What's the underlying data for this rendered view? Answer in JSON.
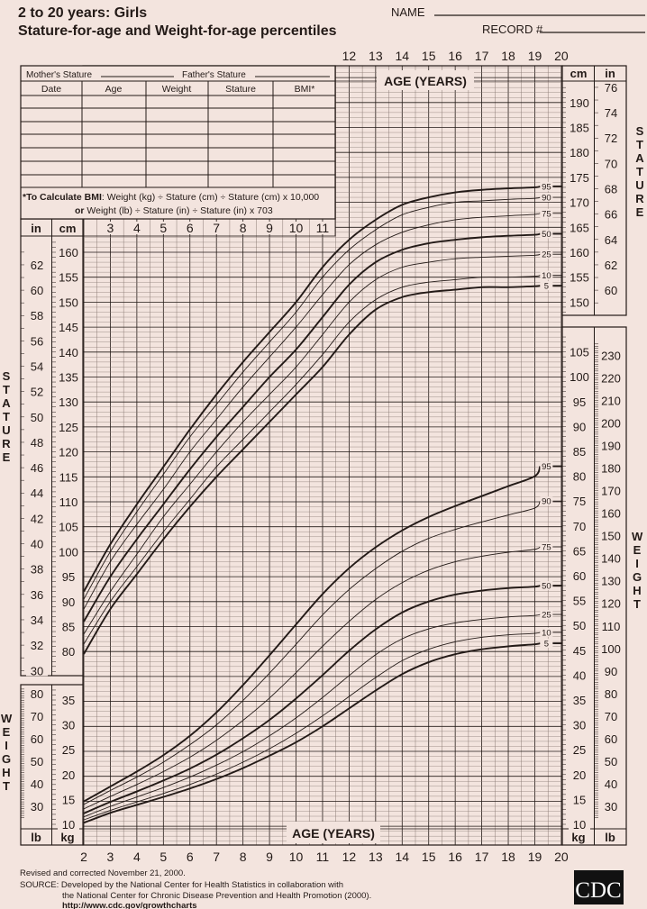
{
  "header": {
    "title": "2 to 20 years: Girls",
    "subtitle": "Stature-for-age and Weight-for-age percentiles",
    "name_label": "NAME",
    "record_label": "RECORD #"
  },
  "table": {
    "mother_label": "Mother's Stature",
    "father_label": "Father's Stature",
    "columns": [
      "Date",
      "Age",
      "Weight",
      "Stature",
      "BMI*"
    ],
    "bmi_note_bold": "*To Calculate BMI",
    "bmi_note_1": ": Weight (kg) ÷ Stature (cm) ÷ Stature (cm) x 10,000",
    "bmi_note_or": "or",
    "bmi_note_2": " Weight (lb) ÷ Stature (in) ÷ Stature (in) x 703"
  },
  "axes": {
    "age_title": "AGE (YEARS)",
    "in": "in",
    "cm": "cm",
    "kg": "kg",
    "lb": "lb",
    "stature_side": "STATURE",
    "weight_side": "WEIGHT",
    "top_ages": [
      12,
      13,
      14,
      15,
      16,
      17,
      18,
      19,
      20
    ],
    "inner_ages": [
      3,
      4,
      5,
      6,
      7,
      8,
      9,
      10,
      11
    ],
    "bottom_ages": [
      2,
      3,
      4,
      5,
      6,
      7,
      8,
      9,
      10,
      11,
      12,
      13,
      14,
      15,
      16,
      17,
      18,
      19,
      20
    ],
    "left_stature_in": [
      30,
      32,
      34,
      36,
      38,
      40,
      42,
      44,
      46,
      48,
      50,
      52,
      54,
      56,
      58,
      60,
      62
    ],
    "left_stature_cm": [
      80,
      85,
      90,
      95,
      100,
      105,
      110,
      115,
      120,
      125,
      130,
      135,
      140,
      145,
      150,
      155,
      160
    ],
    "right_stature_cm": [
      150,
      155,
      160,
      165,
      170,
      175,
      180,
      185,
      190
    ],
    "right_stature_in": [
      60,
      62,
      64,
      66,
      68,
      70,
      72,
      74,
      76
    ],
    "left_weight_lb": [
      30,
      40,
      50,
      60,
      70,
      80
    ],
    "left_weight_kg": [
      10,
      15,
      20,
      25,
      30,
      35
    ],
    "right_weight_kg": [
      10,
      15,
      20,
      25,
      30,
      35,
      40,
      45,
      50,
      55,
      60,
      65,
      70,
      75,
      80,
      85,
      90,
      95,
      100,
      105
    ],
    "right_weight_lb": [
      30,
      40,
      50,
      60,
      70,
      80,
      90,
      100,
      110,
      120,
      130,
      140,
      150,
      160,
      170,
      180,
      190,
      200,
      210,
      220,
      230
    ]
  },
  "footer": {
    "revised": "Revised and corrected November 21, 2000.",
    "source_1": "SOURCE: Developed by the National Center for Health Statistics in collaboration with",
    "source_2": "the National Center for Chronic Disease Prevention and Health Promotion (2000).",
    "url": "http://www.cdc.gov/growthcharts",
    "logo": "CDC"
  },
  "colors": {
    "background": "#f3e4de",
    "ink": "#231a17",
    "grid": "#8a7a74"
  },
  "chart_data": [
    {
      "type": "line",
      "title": "Stature-for-age percentiles",
      "xlabel": "AGE (YEARS)",
      "ylabel": "STATURE (cm)",
      "xlim": [
        2,
        20
      ],
      "ylim": [
        75,
        192
      ],
      "x": [
        2,
        3,
        4,
        5,
        6,
        7,
        8,
        9,
        10,
        11,
        12,
        13,
        14,
        15,
        16,
        17,
        18,
        19,
        20
      ],
      "series": [
        {
          "name": "95",
          "values": [
            92,
            101.5,
            109.5,
            117,
            124.5,
            131.5,
            138,
            144,
            150,
            157,
            162.5,
            166.5,
            169.5,
            171,
            172,
            172.5,
            172.8,
            173,
            173.2
          ]
        },
        {
          "name": "90",
          "values": [
            90.5,
            100,
            108,
            115.5,
            123,
            129.5,
            136,
            142,
            148,
            155,
            160.5,
            164.5,
            167.5,
            169,
            170,
            170.3,
            170.6,
            170.8,
            171
          ]
        },
        {
          "name": "75",
          "values": [
            88.5,
            98,
            105.5,
            112.5,
            120,
            126.5,
            133,
            139,
            145,
            151.5,
            157.5,
            161.5,
            164,
            165.5,
            166.5,
            167,
            167.3,
            167.6,
            167.8
          ]
        },
        {
          "name": "50",
          "values": [
            86,
            95,
            102.5,
            109.5,
            116.5,
            123,
            129,
            135,
            140.5,
            147,
            153.5,
            158,
            160.5,
            161.8,
            162.5,
            163,
            163.3,
            163.5,
            163.7
          ]
        },
        {
          "name": "25",
          "values": [
            83.5,
            92,
            99.5,
            107,
            113.5,
            120,
            126,
            131.5,
            137,
            143.5,
            150,
            154.5,
            157,
            158,
            158.7,
            159,
            159.2,
            159.4,
            159.6
          ]
        },
        {
          "name": "10",
          "values": [
            81.5,
            90,
            97,
            104,
            110.5,
            117,
            122.5,
            128,
            133.5,
            139.5,
            146,
            150.5,
            153,
            154,
            154.5,
            155,
            155,
            155.2,
            155.4
          ]
        },
        {
          "name": "5",
          "values": [
            79.5,
            88.5,
            95.5,
            102.5,
            109,
            115,
            120.5,
            126,
            131.5,
            137,
            143.5,
            148.5,
            151,
            152,
            152.5,
            153,
            153,
            153.2,
            153.3
          ]
        }
      ]
    },
    {
      "type": "line",
      "title": "Weight-for-age percentiles",
      "xlabel": "AGE (YEARS)",
      "ylabel": "WEIGHT (kg)",
      "xlim": [
        2,
        20
      ],
      "ylim": [
        6,
        108
      ],
      "x": [
        2,
        3,
        4,
        5,
        6,
        7,
        8,
        9,
        10,
        11,
        12,
        13,
        14,
        15,
        16,
        17,
        18,
        19,
        20
      ],
      "series": [
        {
          "name": "95",
          "values": [
            14.6,
            17.6,
            20.6,
            23.9,
            27.8,
            32.5,
            38,
            44,
            50.2,
            56.3,
            61.5,
            65.7,
            69.1,
            71.8,
            74,
            76,
            78,
            80,
            82
          ]
        },
        {
          "name": "90",
          "values": [
            14,
            16.8,
            19.5,
            22.5,
            26,
            30,
            34.9,
            40.4,
            46.2,
            52.1,
            57.2,
            61.4,
            64.9,
            67.5,
            69.3,
            70.8,
            72.2,
            73.6,
            75
          ]
        },
        {
          "name": "75",
          "values": [
            13.1,
            15.6,
            18,
            20.6,
            23.5,
            26.9,
            30.9,
            35.4,
            40.5,
            45.8,
            50.8,
            55.2,
            58.6,
            61.1,
            62.8,
            63.9,
            64.7,
            65.3,
            65.8
          ]
        },
        {
          "name": "50",
          "values": [
            12.2,
            14.5,
            16.6,
            18.8,
            21.2,
            24,
            27.3,
            31,
            35.3,
            40,
            44.9,
            49.2,
            52.6,
            54.8,
            56.2,
            57,
            57.5,
            57.8,
            58
          ]
        },
        {
          "name": "25",
          "values": [
            11.5,
            13.6,
            15.5,
            17.4,
            19.5,
            21.9,
            24.6,
            27.8,
            31.4,
            35.5,
            39.9,
            44.1,
            47.3,
            49.3,
            50.5,
            51.2,
            51.7,
            52,
            52.2
          ]
        },
        {
          "name": "10",
          "values": [
            10.9,
            12.8,
            14.5,
            16.2,
            18,
            20.1,
            22.5,
            25.2,
            28.3,
            31.8,
            35.7,
            39.5,
            42.9,
            45.2,
            46.7,
            47.6,
            48.1,
            48.4,
            48.6
          ]
        },
        {
          "name": "5",
          "values": [
            10.3,
            12.3,
            13.9,
            15.5,
            17.2,
            19.1,
            21.3,
            23.8,
            26.5,
            29.7,
            33.3,
            36.9,
            40.2,
            42.6,
            44.2,
            45.2,
            45.8,
            46.2,
            46.4
          ]
        }
      ]
    }
  ]
}
